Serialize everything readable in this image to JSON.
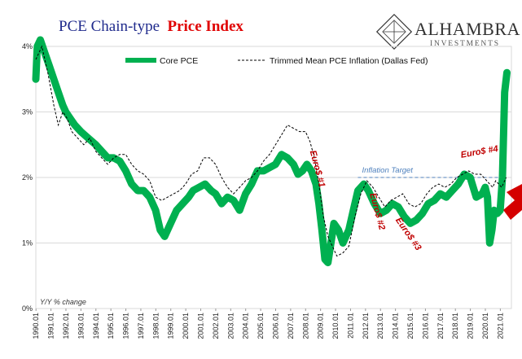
{
  "chart_data": {
    "type": "line",
    "title": "PCE Chain-type Price Index",
    "title_parts": [
      "PCE Chain-type",
      "Price Index"
    ],
    "ylabel": "Y/Y % change",
    "ylim": [
      0,
      4
    ],
    "y_ticks": [
      0,
      1,
      2,
      3,
      4
    ],
    "y_tick_labels": [
      "0%",
      "1%",
      "2%",
      "3%",
      "4%"
    ],
    "xlim": [
      1990.0,
      2021.75
    ],
    "x_tick_labels": [
      "1990.01",
      "1991.01",
      "1992.01",
      "1993.01",
      "1994.01",
      "1995.01",
      "1996.01",
      "1997.01",
      "1998.01",
      "1999.01",
      "2000.01",
      "2001.01",
      "2002.01",
      "2003.01",
      "2004.01",
      "2005.01",
      "2006.01",
      "2007.01",
      "2008.01",
      "2009.01",
      "2010.01",
      "2011.01",
      "2012.01",
      "2013.01",
      "2014.01",
      "2015.01",
      "2016.01",
      "2017.01",
      "2018.01",
      "2019.01",
      "2020.01",
      "2021.01"
    ],
    "legend_position": "top",
    "colors": {
      "core": "#00b050",
      "trimmed": "#000000",
      "annotation": "#c00000",
      "target": "#4f81bd",
      "title_blue": "#1f2a8c",
      "title_red": "#e00000"
    },
    "series": [
      {
        "name": "Core PCE",
        "x": [
          1990.0,
          1990.1,
          1990.3,
          1990.6,
          1990.9,
          1991.2,
          1991.5,
          1991.8,
          1992.0,
          1992.3,
          1992.6,
          1993.0,
          1993.5,
          1994.0,
          1994.4,
          1994.8,
          1995.2,
          1995.6,
          1996.0,
          1996.4,
          1996.8,
          1997.2,
          1997.6,
          1998.0,
          1998.3,
          1998.6,
          1999.0,
          1999.4,
          1999.8,
          2000.2,
          2000.5,
          2000.9,
          2001.3,
          2001.7,
          2002.0,
          2002.4,
          2002.8,
          2003.2,
          2003.6,
          2004.0,
          2004.4,
          2004.8,
          2005.2,
          2005.6,
          2006.0,
          2006.4,
          2006.8,
          2007.2,
          2007.5,
          2007.8,
          2008.1,
          2008.4,
          2008.7,
          2008.9,
          2009.1,
          2009.3,
          2009.5,
          2009.7,
          2009.9,
          2010.2,
          2010.5,
          2010.9,
          2011.2,
          2011.5,
          2011.9,
          2012.2,
          2012.6,
          2013.0,
          2013.4,
          2013.8,
          2014.2,
          2014.6,
          2015.0,
          2015.4,
          2015.8,
          2016.2,
          2016.6,
          2017.0,
          2017.4,
          2017.8,
          2018.2,
          2018.6,
          2019.0,
          2019.4,
          2019.8,
          2020.0,
          2020.15,
          2020.3,
          2020.45,
          2020.6,
          2020.8,
          2021.0,
          2021.15,
          2021.3,
          2021.45
        ],
        "values": [
          3.5,
          4.0,
          4.1,
          3.9,
          3.7,
          3.5,
          3.3,
          3.1,
          3.0,
          2.9,
          2.8,
          2.7,
          2.6,
          2.5,
          2.4,
          2.3,
          2.3,
          2.25,
          2.1,
          1.9,
          1.8,
          1.8,
          1.7,
          1.5,
          1.2,
          1.1,
          1.3,
          1.5,
          1.6,
          1.7,
          1.8,
          1.85,
          1.9,
          1.8,
          1.75,
          1.6,
          1.7,
          1.65,
          1.5,
          1.75,
          1.9,
          2.1,
          2.1,
          2.15,
          2.2,
          2.35,
          2.3,
          2.2,
          2.05,
          2.1,
          2.2,
          2.1,
          1.9,
          1.6,
          1.2,
          0.75,
          0.7,
          1.0,
          1.3,
          1.2,
          1.0,
          1.2,
          1.5,
          1.8,
          1.9,
          1.8,
          1.6,
          1.45,
          1.5,
          1.6,
          1.55,
          1.4,
          1.3,
          1.35,
          1.45,
          1.6,
          1.65,
          1.75,
          1.7,
          1.8,
          1.9,
          2.05,
          2.0,
          1.7,
          1.75,
          1.85,
          1.7,
          1.0,
          1.2,
          1.5,
          1.45,
          1.5,
          2.0,
          3.3,
          3.6
        ]
      },
      {
        "name": "Trimmed Mean PCE Inflation (Dallas Fed)",
        "x": [
          1990.0,
          1990.4,
          1990.8,
          1991.2,
          1991.5,
          1991.8,
          1992.1,
          1992.4,
          1992.8,
          1993.2,
          1993.6,
          1994.0,
          1994.4,
          1994.8,
          1995.2,
          1995.6,
          1996.0,
          1996.4,
          1996.8,
          1997.2,
          1997.6,
          1998.0,
          1998.4,
          1998.8,
          1999.2,
          1999.6,
          2000.0,
          2000.4,
          2000.8,
          2001.2,
          2001.6,
          2002.0,
          2002.4,
          2002.8,
          2003.2,
          2003.6,
          2004.0,
          2004.4,
          2004.8,
          2005.2,
          2005.6,
          2006.0,
          2006.4,
          2006.8,
          2007.2,
          2007.6,
          2008.0,
          2008.3,
          2008.6,
          2008.9,
          2009.2,
          2009.5,
          2009.8,
          2010.1,
          2010.5,
          2010.9,
          2011.3,
          2011.7,
          2012.1,
          2012.5,
          2012.9,
          2013.3,
          2013.7,
          2014.1,
          2014.5,
          2014.9,
          2015.3,
          2015.7,
          2016.1,
          2016.5,
          2016.9,
          2017.3,
          2017.7,
          2018.1,
          2018.5,
          2018.9,
          2019.3,
          2019.7,
          2020.1,
          2020.3,
          2020.5,
          2020.7,
          2020.9,
          2021.1,
          2021.4
        ],
        "values": [
          3.8,
          4.0,
          3.6,
          3.1,
          2.8,
          3.0,
          2.9,
          2.7,
          2.6,
          2.5,
          2.6,
          2.4,
          2.3,
          2.2,
          2.3,
          2.35,
          2.35,
          2.2,
          2.1,
          2.05,
          1.95,
          1.7,
          1.65,
          1.7,
          1.75,
          1.8,
          1.9,
          2.05,
          2.1,
          2.3,
          2.3,
          2.2,
          2.0,
          1.85,
          1.75,
          1.85,
          1.95,
          2.0,
          2.1,
          2.25,
          2.35,
          2.5,
          2.65,
          2.8,
          2.75,
          2.7,
          2.7,
          2.55,
          2.3,
          1.9,
          1.4,
          1.1,
          0.95,
          0.8,
          0.85,
          0.95,
          1.4,
          1.75,
          1.95,
          1.85,
          1.7,
          1.55,
          1.65,
          1.7,
          1.75,
          1.6,
          1.55,
          1.6,
          1.75,
          1.85,
          1.9,
          1.85,
          1.9,
          2.0,
          2.05,
          2.1,
          2.05,
          2.05,
          1.95,
          1.9,
          1.85,
          1.95,
          1.9,
          1.85,
          2.0
        ]
      }
    ],
    "reference_lines": [
      {
        "label": "Inflation Target",
        "y": 2.0,
        "x_range": [
          2011.5,
          2021.0
        ]
      }
    ],
    "annotations": [
      {
        "text": "Euro$ #1",
        "x": 2008.3,
        "y": 2.4,
        "rotation": 75
      },
      {
        "text": "Euro$ #2",
        "x": 2012.3,
        "y": 1.75,
        "rotation": 75
      },
      {
        "text": "Euro$ #3",
        "x": 2014.0,
        "y": 1.35,
        "rotation": 55
      },
      {
        "text": "Euro$ #4",
        "x": 2018.4,
        "y": 2.3,
        "rotation": -10
      }
    ]
  },
  "logo": {
    "name": "ALHAMBRA",
    "subtitle": "INVESTMENTS"
  }
}
